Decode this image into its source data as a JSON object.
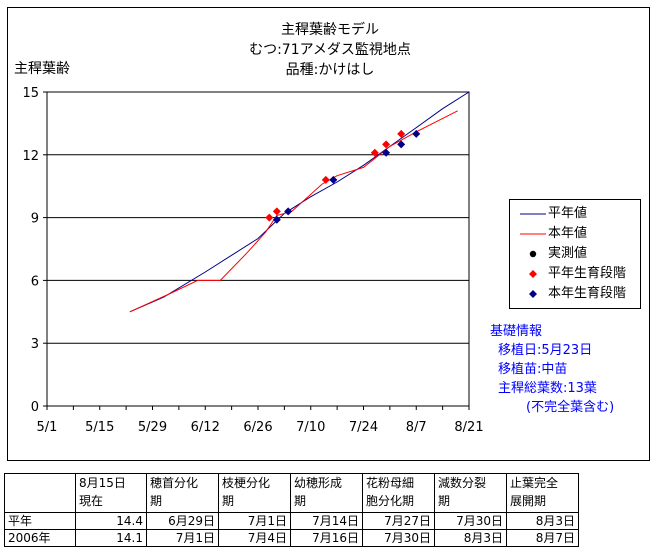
{
  "chart_data": {
    "type": "line",
    "title": [
      "主稈葉齢モデル",
      "むつ:71アメダス監視地点",
      "品種:かけはし"
    ],
    "ylabel": "主稈葉齢",
    "xlabel": "",
    "x_ticks": [
      "5/1",
      "5/15",
      "5/29",
      "6/12",
      "6/26",
      "7/10",
      "7/24",
      "8/7",
      "8/21"
    ],
    "y_ticks": [
      "0",
      "3",
      "6",
      "9",
      "12",
      "15"
    ],
    "xlim": [
      "5/1",
      "8/21"
    ],
    "ylim": [
      0,
      15
    ],
    "grid": "horizontal",
    "legend_position": "right",
    "series": [
      {
        "name": "平年値",
        "kind": "line",
        "color": "#00008b",
        "points": [
          [
            "5/23",
            4.5
          ],
          [
            "6/1",
            5.2
          ],
          [
            "6/12",
            6.4
          ],
          [
            "6/26",
            8.0
          ],
          [
            "7/3",
            9.2
          ],
          [
            "7/10",
            10.0
          ],
          [
            "7/17",
            10.7
          ],
          [
            "7/24",
            11.5
          ],
          [
            "7/31",
            12.4
          ],
          [
            "8/7",
            13.3
          ],
          [
            "8/14",
            14.2
          ],
          [
            "8/21",
            15.0
          ]
        ]
      },
      {
        "name": "本年値",
        "kind": "line",
        "color": "#ff0000",
        "points": [
          [
            "5/23",
            4.5
          ],
          [
            "6/3",
            5.4
          ],
          [
            "6/10",
            6.0
          ],
          [
            "6/16",
            6.0
          ],
          [
            "6/23",
            7.3
          ],
          [
            "6/28",
            8.3
          ],
          [
            "7/1",
            9.1
          ],
          [
            "7/5",
            9.3
          ],
          [
            "7/13",
            10.6
          ],
          [
            "7/17",
            11.0
          ],
          [
            "7/24",
            11.4
          ],
          [
            "7/31",
            12.4
          ],
          [
            "8/7",
            13.1
          ],
          [
            "8/18",
            14.1
          ]
        ]
      },
      {
        "name": "実測値",
        "kind": "marker",
        "color": "#000000",
        "points": []
      },
      {
        "name": "平年生育段階",
        "kind": "marker",
        "color": "#ff0000",
        "points": [
          [
            "6/29",
            9.0
          ],
          [
            "7/1",
            9.3
          ],
          [
            "7/14",
            10.8
          ],
          [
            "7/27",
            12.1
          ],
          [
            "7/30",
            12.5
          ],
          [
            "8/3",
            13.0
          ]
        ]
      },
      {
        "name": "本年生育段階",
        "kind": "marker",
        "color": "#00008b",
        "points": [
          [
            "7/1",
            8.9
          ],
          [
            "7/4",
            9.3
          ],
          [
            "7/16",
            10.8
          ],
          [
            "7/30",
            12.1
          ],
          [
            "8/3",
            12.5
          ],
          [
            "8/7",
            13.0
          ]
        ]
      }
    ]
  },
  "info": {
    "heading": "基礎情報",
    "lines": [
      "移植日:5月23日",
      "移植苗:中苗",
      "主稈総葉数:13葉",
      "(不完全葉含む)"
    ]
  },
  "table": {
    "headers": [
      "",
      "8月15日\n現在",
      "穂首分化\n期",
      "枝梗分化\n期",
      "幼穂形成\n期",
      "花粉母細\n胞分化期",
      "減数分裂\n期",
      "止葉完全\n展開期"
    ],
    "rows": [
      [
        "平年",
        "14.4",
        "6月29日",
        "7月1日",
        "7月14日",
        "7月27日",
        "7月30日",
        "8月3日"
      ],
      [
        "2006年",
        "14.1",
        "7月1日",
        "7月4日",
        "7月16日",
        "7月30日",
        "8月3日",
        "8月7日"
      ]
    ]
  }
}
